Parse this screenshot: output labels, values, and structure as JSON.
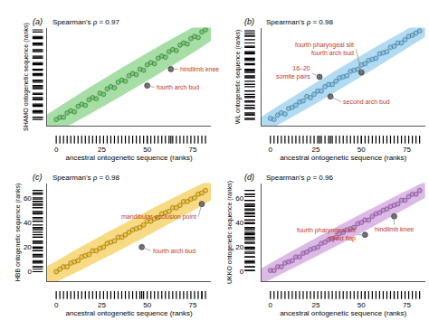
{
  "chart_data": [
    {
      "type": "scatter",
      "title": "(a)",
      "subtitle": "Spearman's ρ = 0.97",
      "x_label": "ancestral ontogenetic sequence (ranks)",
      "y_label": "SHAMO ontogenetic sequence (ranks)",
      "color": "#6cc96c",
      "x": [
        0,
        2,
        4,
        6,
        8,
        10,
        12,
        14,
        16,
        18,
        20,
        22,
        24,
        26,
        28,
        30,
        32,
        34,
        36,
        38,
        40,
        42,
        44,
        46,
        48,
        50,
        52,
        54,
        56,
        58,
        60,
        62,
        64,
        66,
        68,
        70,
        72,
        74,
        76,
        78,
        80,
        82
      ],
      "y": [
        1,
        3,
        3,
        7,
        9,
        8,
        13,
        15,
        14,
        19,
        21,
        20,
        25,
        24,
        29,
        31,
        30,
        35,
        37,
        36,
        41,
        43,
        42,
        47,
        46,
        51,
        53,
        52,
        57,
        59,
        58,
        63,
        65,
        64,
        69,
        71,
        70,
        75,
        77,
        76,
        81,
        83
      ],
      "annotations": [
        {
          "text": "hindlimb knee",
          "x": 63,
          "y": 47
        },
        {
          "text": "fourth arch bud",
          "x": 50,
          "y": 32
        }
      ],
      "xlim": [
        -5,
        85
      ],
      "ylim": [
        -5,
        85
      ],
      "xticks": [
        0,
        25,
        50,
        75
      ],
      "tick_labels": "x"
    },
    {
      "type": "scatter",
      "title": "(b)",
      "subtitle": "Spearman's ρ = 0.98",
      "x_label": "ancestral ontogenetic sequence (ranks)",
      "y_label": "WL ontogenetic sequence (ranks)",
      "color": "#7ec3ea",
      "x": [
        0,
        2,
        4,
        6,
        8,
        10,
        12,
        14,
        16,
        18,
        20,
        22,
        24,
        26,
        28,
        30,
        32,
        34,
        36,
        38,
        40,
        42,
        44,
        46,
        48,
        50,
        52,
        54,
        56,
        58,
        60,
        62,
        64,
        66,
        68,
        70,
        72,
        74,
        76,
        78,
        80,
        82
      ],
      "y": [
        2,
        1,
        5,
        7,
        6,
        11,
        12,
        14,
        17,
        18,
        22,
        21,
        24,
        27,
        27,
        31,
        33,
        33,
        36,
        39,
        40,
        41,
        45,
        46,
        47,
        51,
        52,
        55,
        56,
        57,
        61,
        62,
        63,
        67,
        68,
        71,
        71,
        74,
        77,
        78,
        80,
        82
      ],
      "annotations": [
        {
          "text": [
            "16–20",
            "somite pairs"
          ],
          "x": 27,
          "y": 40
        },
        {
          "text": "second arch bud",
          "x": 33,
          "y": 22
        },
        {
          "text": [
            "fourth pharyngeal slit",
            "fourth arch bud"
          ],
          "x": 50,
          "y": 44
        }
      ],
      "xlim": [
        -5,
        85
      ],
      "ylim": [
        -5,
        85
      ],
      "xticks": [
        0,
        25,
        50,
        75
      ],
      "tick_labels": "x"
    },
    {
      "type": "scatter",
      "title": "(c)",
      "subtitle": "Spearman's ρ = 0.98",
      "x_label": "ancestral ontogenetic sequence (ranks)",
      "y_label": "HBB ontogenetic sequence (ranks)",
      "color": "#f2c230",
      "x": [
        0,
        2,
        4,
        6,
        8,
        10,
        12,
        14,
        16,
        18,
        20,
        22,
        24,
        26,
        28,
        30,
        32,
        34,
        36,
        38,
        40,
        42,
        44,
        46,
        48,
        50,
        52,
        54,
        56,
        58,
        60,
        62,
        64,
        66,
        68,
        70,
        72,
        74,
        76,
        78,
        80,
        82
      ],
      "y": [
        0,
        2,
        4,
        4,
        7,
        8,
        9,
        12,
        13,
        14,
        17,
        17,
        19,
        20,
        23,
        24,
        25,
        28,
        28,
        30,
        32,
        34,
        35,
        36,
        38,
        41,
        41,
        43,
        44,
        47,
        48,
        49,
        52,
        52,
        54,
        57,
        57,
        59,
        60,
        63,
        64,
        66
      ],
      "annotations": [
        {
          "text": "mandibular occlusion point",
          "x": 80,
          "y": 55
        },
        {
          "text": "fourth arch bud",
          "x": 47,
          "y": 20
        }
      ],
      "xlim": [
        -5,
        85
      ],
      "ylim": [
        -8,
        72
      ],
      "xticks": [
        0,
        25,
        50,
        75
      ],
      "yticks": [
        0,
        20,
        40,
        60
      ]
    },
    {
      "type": "scatter",
      "title": "(d)",
      "subtitle": "Spearman's ρ = 0.96",
      "x_label": "ancestral ontogenetic sequence (ranks)",
      "y_label": "UKKO ontogenetic sequence (ranks)",
      "color": "#c58ad8",
      "x": [
        0,
        2,
        4,
        6,
        8,
        10,
        12,
        14,
        16,
        18,
        20,
        22,
        24,
        26,
        28,
        30,
        32,
        34,
        36,
        38,
        40,
        42,
        44,
        46,
        48,
        50,
        52,
        54,
        56,
        58,
        60,
        62,
        64,
        66,
        68,
        70,
        72,
        74,
        76,
        78,
        80,
        82
      ],
      "y": [
        1,
        1,
        4,
        4,
        7,
        8,
        9,
        12,
        12,
        15,
        16,
        18,
        19,
        20,
        23,
        24,
        26,
        27,
        28,
        31,
        32,
        34,
        35,
        36,
        39,
        40,
        42,
        42,
        45,
        47,
        48,
        50,
        51,
        53,
        54,
        55,
        58,
        58,
        61,
        63,
        63,
        66
      ],
      "annotations": [
        {
          "text": "hindlimb knee",
          "x": 68,
          "y": 45
        },
        {
          "text": [
            "fourth pharyngeal slit",
            "hyoid flap"
          ],
          "x": 52,
          "y": 30
        }
      ],
      "xlim": [
        -5,
        85
      ],
      "ylim": [
        -8,
        72
      ],
      "xticks": [
        0,
        25,
        50,
        75
      ],
      "yticks": [
        0,
        20,
        40,
        60
      ]
    }
  ]
}
